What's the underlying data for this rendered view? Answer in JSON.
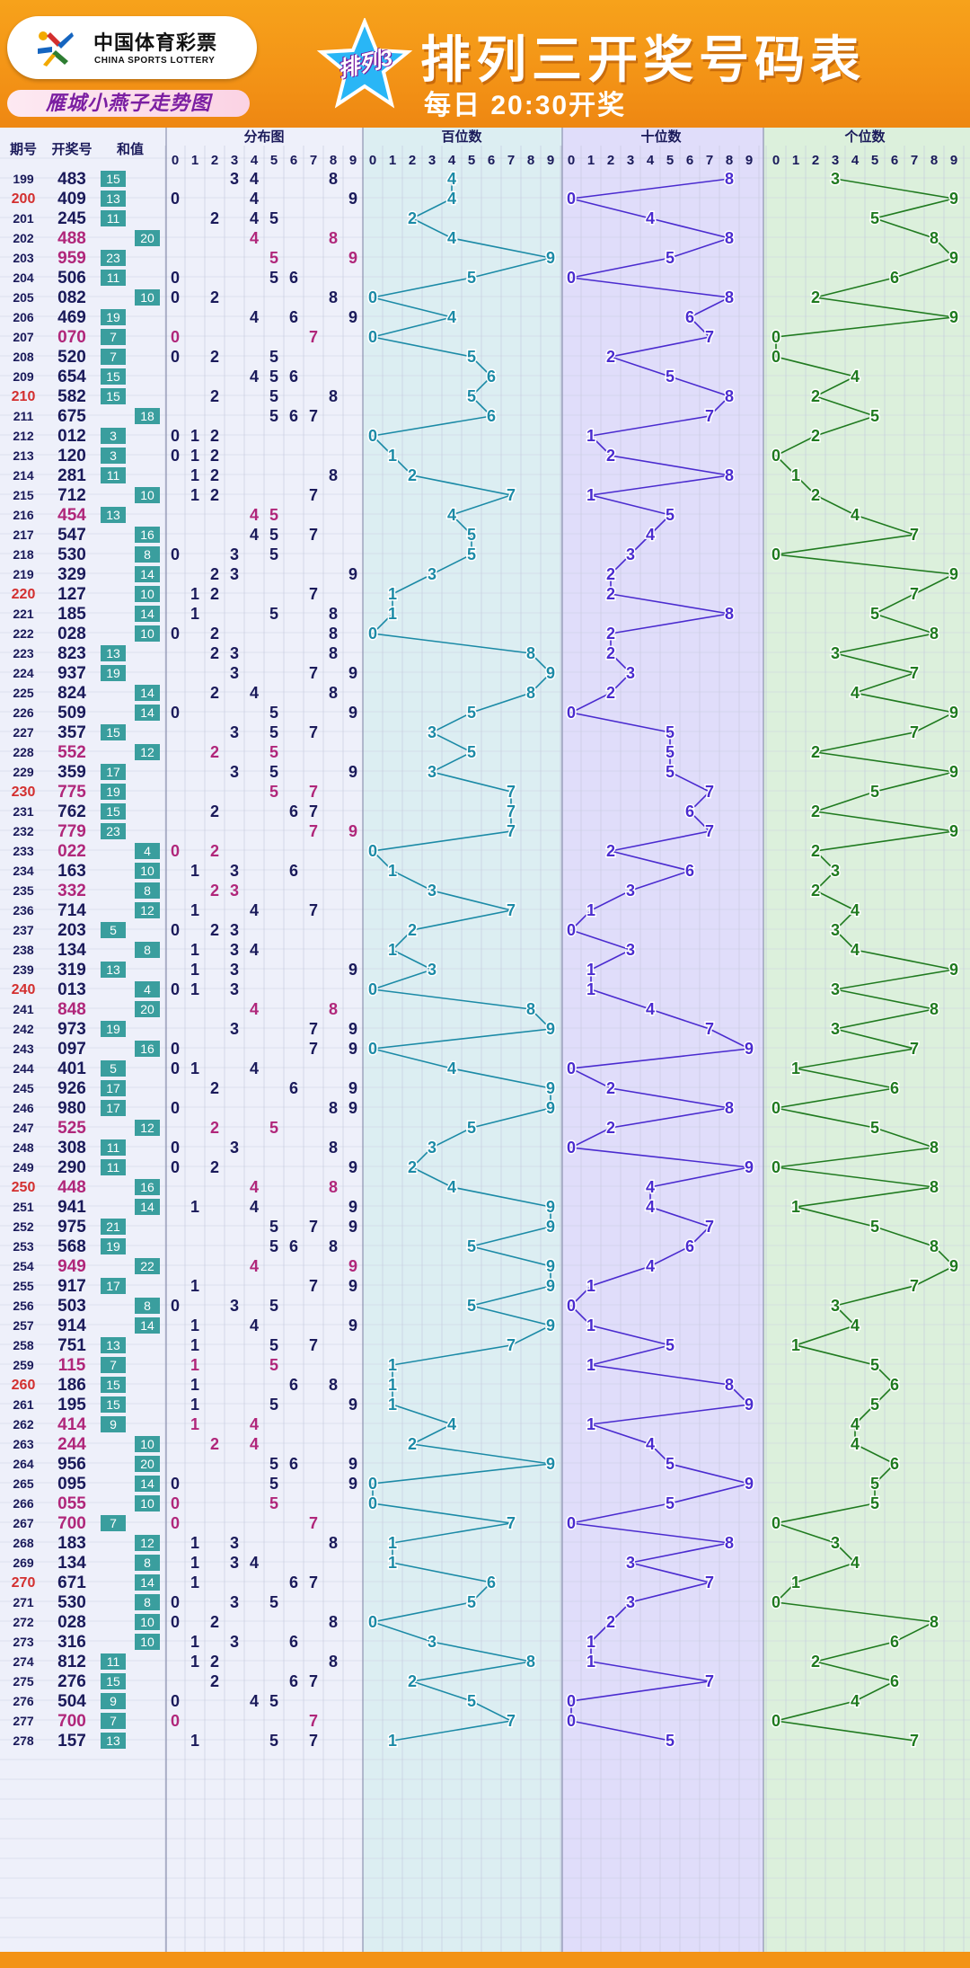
{
  "header": {
    "logo_cn": "中国体育彩票",
    "logo_en": "CHINA SPORTS LOTTERY",
    "subtitle": "雁城小燕子走势图",
    "badge": "排列3",
    "title": "排列三开奖号码表",
    "draw_time": "每日 20:30开奖"
  },
  "colors": {
    "header_orange": "#f39316",
    "hundreds_line": "#1b8aa6",
    "tens_line": "#4a2bcf",
    "ones_line": "#1f7a1f",
    "repeat_number": "#b0267a",
    "highlight_period": "#d32f2f",
    "sum_box": "#3a9e9e"
  },
  "chart_data": {
    "type": "table",
    "columns": {
      "period": "期号",
      "number": "开奖号",
      "sum": "和值",
      "distribution": "分布图",
      "hundreds": "百位数",
      "tens": "十位数",
      "ones": "个位数"
    },
    "digit_headers": [
      "0",
      "1",
      "2",
      "3",
      "4",
      "5",
      "6",
      "7",
      "8",
      "9"
    ],
    "rows": [
      {
        "period": "199",
        "number": "483",
        "sum": 15
      },
      {
        "period": "200",
        "number": "409",
        "sum": 13
      },
      {
        "period": "201",
        "number": "245",
        "sum": 11
      },
      {
        "period": "202",
        "number": "488",
        "sum": 20
      },
      {
        "period": "203",
        "number": "959",
        "sum": 23
      },
      {
        "period": "204",
        "number": "506",
        "sum": 11
      },
      {
        "period": "205",
        "number": "082",
        "sum": 10
      },
      {
        "period": "206",
        "number": "469",
        "sum": 19
      },
      {
        "period": "207",
        "number": "070",
        "sum": 7
      },
      {
        "period": "208",
        "number": "520",
        "sum": 7
      },
      {
        "period": "209",
        "number": "654",
        "sum": 15
      },
      {
        "period": "210",
        "number": "582",
        "sum": 15
      },
      {
        "period": "211",
        "number": "675",
        "sum": 18
      },
      {
        "period": "212",
        "number": "012",
        "sum": 3
      },
      {
        "period": "213",
        "number": "120",
        "sum": 3
      },
      {
        "period": "214",
        "number": "281",
        "sum": 11
      },
      {
        "period": "215",
        "number": "712",
        "sum": 10
      },
      {
        "period": "216",
        "number": "454",
        "sum": 13
      },
      {
        "period": "217",
        "number": "547",
        "sum": 16
      },
      {
        "period": "218",
        "number": "530",
        "sum": 8
      },
      {
        "period": "219",
        "number": "329",
        "sum": 14
      },
      {
        "period": "220",
        "number": "127",
        "sum": 10
      },
      {
        "period": "221",
        "number": "185",
        "sum": 14
      },
      {
        "period": "222",
        "number": "028",
        "sum": 10
      },
      {
        "period": "223",
        "number": "823",
        "sum": 13
      },
      {
        "period": "224",
        "number": "937",
        "sum": 19
      },
      {
        "period": "225",
        "number": "824",
        "sum": 14
      },
      {
        "period": "226",
        "number": "509",
        "sum": 14
      },
      {
        "period": "227",
        "number": "357",
        "sum": 15
      },
      {
        "period": "228",
        "number": "552",
        "sum": 12
      },
      {
        "period": "229",
        "number": "359",
        "sum": 17
      },
      {
        "period": "230",
        "number": "775",
        "sum": 19
      },
      {
        "period": "231",
        "number": "762",
        "sum": 15
      },
      {
        "period": "232",
        "number": "779",
        "sum": 23
      },
      {
        "period": "233",
        "number": "022",
        "sum": 4
      },
      {
        "period": "234",
        "number": "163",
        "sum": 10
      },
      {
        "period": "235",
        "number": "332",
        "sum": 8
      },
      {
        "period": "236",
        "number": "714",
        "sum": 12
      },
      {
        "period": "237",
        "number": "203",
        "sum": 5
      },
      {
        "period": "238",
        "number": "134",
        "sum": 8
      },
      {
        "period": "239",
        "number": "319",
        "sum": 13
      },
      {
        "period": "240",
        "number": "013",
        "sum": 4
      },
      {
        "period": "241",
        "number": "848",
        "sum": 20
      },
      {
        "period": "242",
        "number": "973",
        "sum": 19
      },
      {
        "period": "243",
        "number": "097",
        "sum": 16
      },
      {
        "period": "244",
        "number": "401",
        "sum": 5
      },
      {
        "period": "245",
        "number": "926",
        "sum": 17
      },
      {
        "period": "246",
        "number": "980",
        "sum": 17
      },
      {
        "period": "247",
        "number": "525",
        "sum": 12
      },
      {
        "period": "248",
        "number": "308",
        "sum": 11
      },
      {
        "period": "249",
        "number": "290",
        "sum": 11
      },
      {
        "period": "250",
        "number": "448",
        "sum": 16
      },
      {
        "period": "251",
        "number": "941",
        "sum": 14
      },
      {
        "period": "252",
        "number": "975",
        "sum": 21
      },
      {
        "period": "253",
        "number": "568",
        "sum": 19
      },
      {
        "period": "254",
        "number": "949",
        "sum": 22
      },
      {
        "period": "255",
        "number": "917",
        "sum": 17
      },
      {
        "period": "256",
        "number": "503",
        "sum": 8
      },
      {
        "period": "257",
        "number": "914",
        "sum": 14
      },
      {
        "period": "258",
        "number": "751",
        "sum": 13
      },
      {
        "period": "259",
        "number": "115",
        "sum": 7
      },
      {
        "period": "260",
        "number": "186",
        "sum": 15
      },
      {
        "period": "261",
        "number": "195",
        "sum": 15
      },
      {
        "period": "262",
        "number": "414",
        "sum": 9
      },
      {
        "period": "263",
        "number": "244",
        "sum": 10
      },
      {
        "period": "264",
        "number": "956",
        "sum": 20
      },
      {
        "period": "265",
        "number": "095",
        "sum": 14
      },
      {
        "period": "266",
        "number": "055",
        "sum": 10
      },
      {
        "period": "267",
        "number": "700",
        "sum": 7
      },
      {
        "period": "268",
        "number": "183",
        "sum": 12
      },
      {
        "period": "269",
        "number": "134",
        "sum": 8
      },
      {
        "period": "270",
        "number": "671",
        "sum": 14
      },
      {
        "period": "271",
        "number": "530",
        "sum": 8
      },
      {
        "period": "272",
        "number": "028",
        "sum": 10
      },
      {
        "period": "273",
        "number": "316",
        "sum": 10
      },
      {
        "period": "274",
        "number": "812",
        "sum": 11
      },
      {
        "period": "275",
        "number": "276",
        "sum": 15
      },
      {
        "period": "276",
        "number": "504",
        "sum": 9
      },
      {
        "period": "277",
        "number": "700",
        "sum": 7
      },
      {
        "period": "278",
        "number": "157",
        "sum": 13
      }
    ]
  }
}
